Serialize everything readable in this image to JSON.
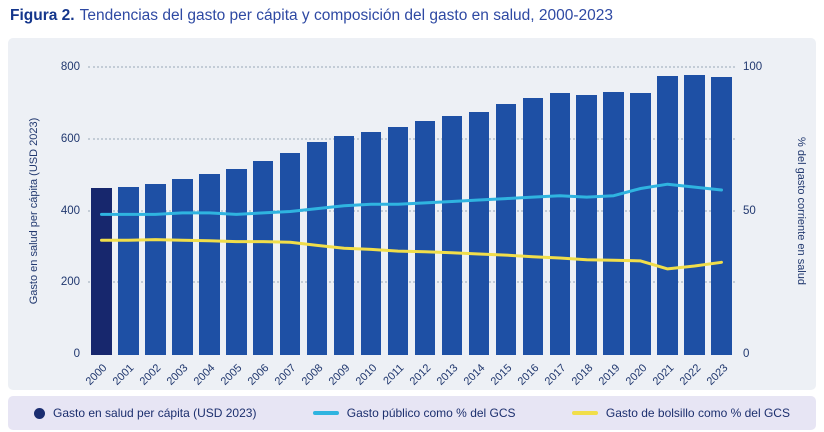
{
  "title": {
    "prefix": "Figura 2.",
    "rest": "Tendencias del gasto per cápita y composición del gasto en salud, 2000-2023"
  },
  "colors": {
    "bar": "#1e50a5",
    "bar_first": "#17276d",
    "public_line": "#2fb4e0",
    "oop_line": "#f1de4a",
    "legend_dot": "#1b2d70",
    "grid": "#c3ccd6",
    "card_bg": "#edf0f5",
    "legend_bg": "#e7e5f4",
    "text_navy": "#21386f"
  },
  "chart_data": {
    "type": "bar",
    "subtype": "bar+line combo, dual axis",
    "grid": "dotted horizontal",
    "categories": [
      "2000",
      "2001",
      "2002",
      "2003",
      "2004",
      "2005",
      "2006",
      "2007",
      "2008",
      "2009",
      "2010",
      "2011",
      "2012",
      "2013",
      "2014",
      "2015",
      "2016",
      "2017",
      "2018",
      "2019",
      "2020",
      "2021",
      "2022",
      "2023"
    ],
    "bar_series": {
      "name": "Gasto en salud per cápita (USD 2023)",
      "axis": "left",
      "values": [
        465,
        468,
        476,
        490,
        504,
        518,
        541,
        563,
        594,
        610,
        622,
        636,
        652,
        665,
        678,
        700,
        716,
        731,
        724,
        733,
        729,
        778,
        780,
        776
      ]
    },
    "line_series": [
      {
        "name": "Gasto público como % del GCS",
        "axis": "right",
        "color": "#2fb4e0",
        "values": [
          49,
          49,
          49,
          49.5,
          49.5,
          49,
          49.5,
          50,
          51,
          52,
          52.5,
          52.5,
          53,
          53.5,
          54,
          54.5,
          55,
          55.5,
          55,
          55.5,
          58,
          59.5,
          58.5,
          57.5
        ]
      },
      {
        "name": "Gasto de bolsillo como % del GCS",
        "axis": "right",
        "color": "#f1de4a",
        "values": [
          40,
          40,
          40.2,
          40,
          39.8,
          39.5,
          39.5,
          39.3,
          38.2,
          37.2,
          36.8,
          36.2,
          36,
          35.6,
          35.2,
          34.8,
          34.2,
          33.8,
          33.2,
          33,
          32.8,
          30,
          31,
          32.3
        ]
      }
    ],
    "left_axis": {
      "label": "Gasto en salud per cápita (USD 2023)",
      "min": 0,
      "max": 800,
      "ticks": [
        0,
        200,
        400,
        600,
        800
      ]
    },
    "right_axis": {
      "label": "% del gasto corriente en salud",
      "min": 0,
      "max": 100,
      "ticks": [
        0,
        50,
        100
      ]
    }
  },
  "legend": {
    "items": [
      {
        "label": "Gasto en salud per cápita (USD 2023)",
        "swatch": "dot",
        "color": "#1b2d70"
      },
      {
        "label": "Gasto público como % del GCS",
        "swatch": "line",
        "color": "#2fb4e0"
      },
      {
        "label": "Gasto de bolsillo como % del GCS",
        "swatch": "line",
        "color": "#f1de4a"
      }
    ]
  }
}
